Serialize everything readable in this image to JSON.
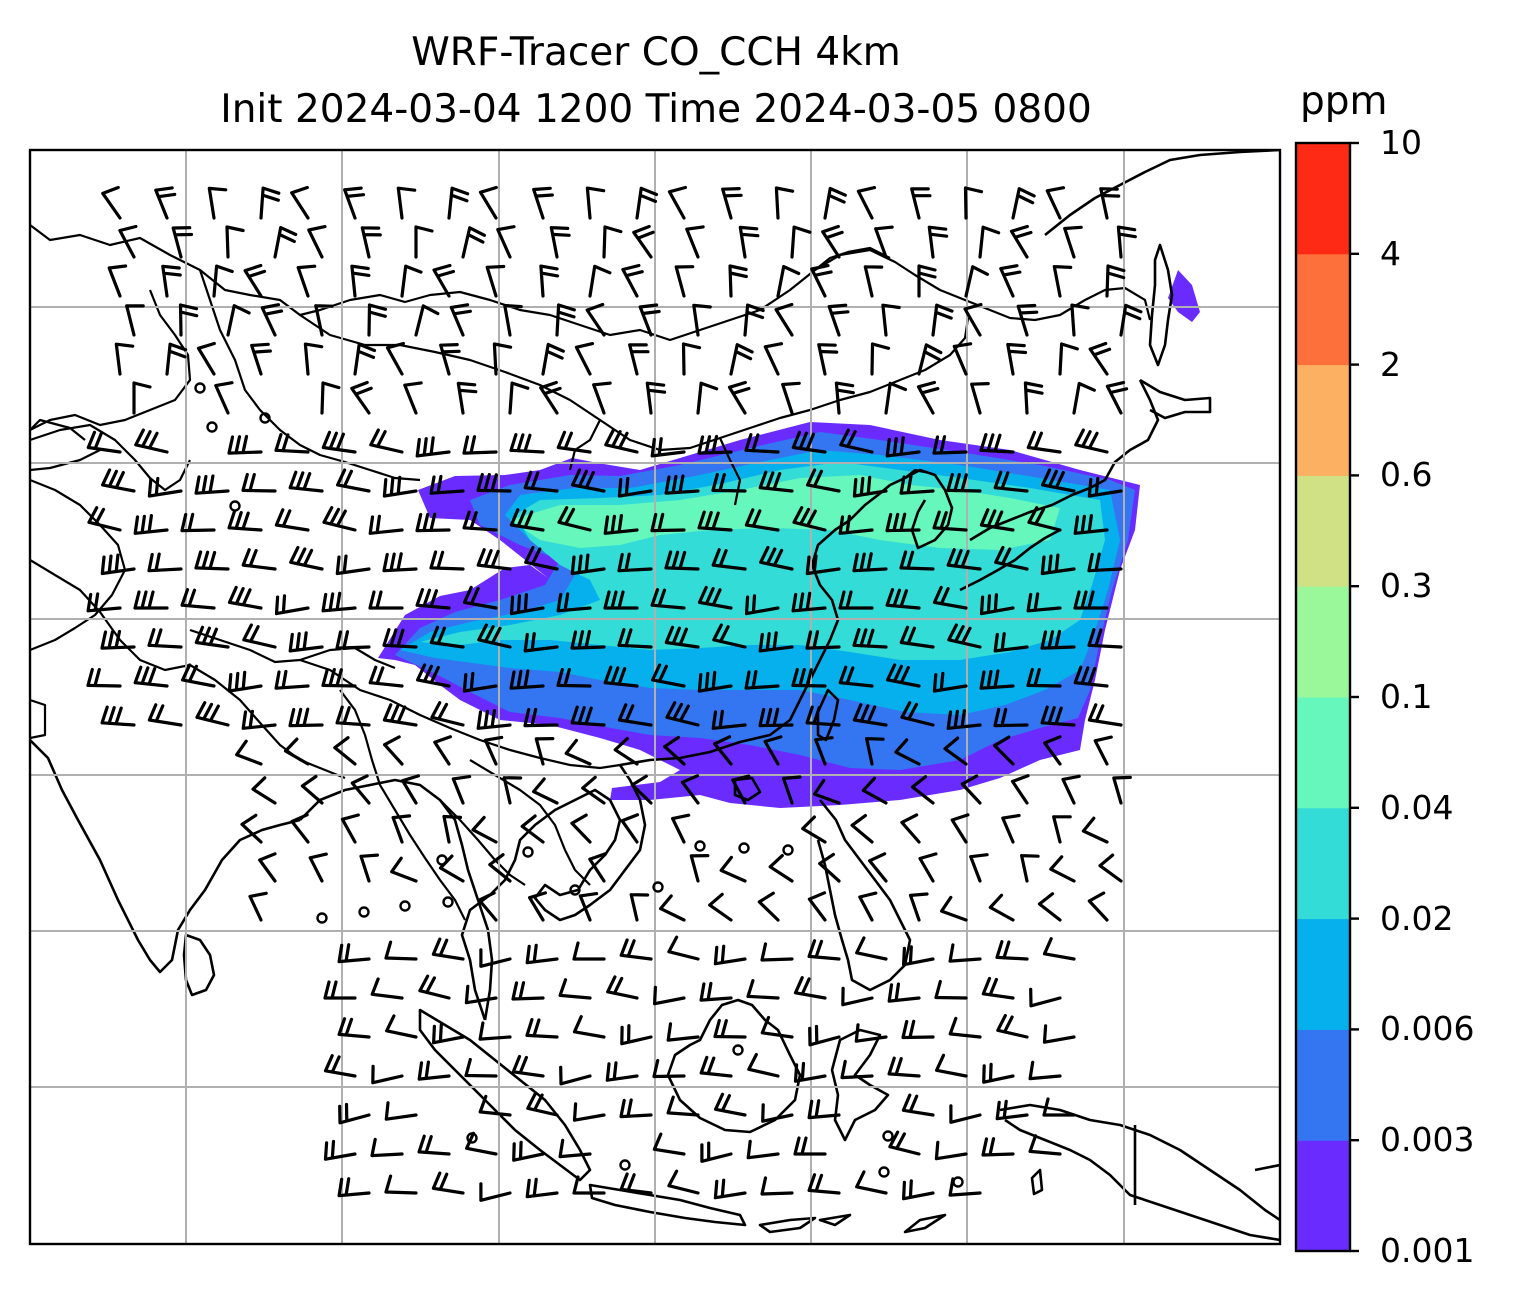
{
  "title": {
    "line1": "WRF-Tracer CO_CCH 4km",
    "line2": "Init 2024-03-04 1200 Time 2024-03-05 0800"
  },
  "colorbar": {
    "unit": "ppm",
    "ticks": [
      "0.001",
      "0.003",
      "0.006",
      "0.02",
      "0.04",
      "0.1",
      "0.3",
      "0.6",
      "2",
      "4",
      "10"
    ],
    "colors": [
      "#6a2bff",
      "#3476f2",
      "#06b0ec",
      "#33dcd6",
      "#66f7bc",
      "#9bf89a",
      "#cfe085",
      "#fcb062",
      "#fe703b",
      "#ff2a16"
    ]
  },
  "map": {
    "grid_color": "#b0b0b0",
    "coast_color": "#000000",
    "plume_levels": {
      "outer": "#6a2bff",
      "level2": "#3476f2",
      "level3": "#06b0ec",
      "level4": "#33dcd6",
      "level5": "#66f7bc"
    }
  }
}
